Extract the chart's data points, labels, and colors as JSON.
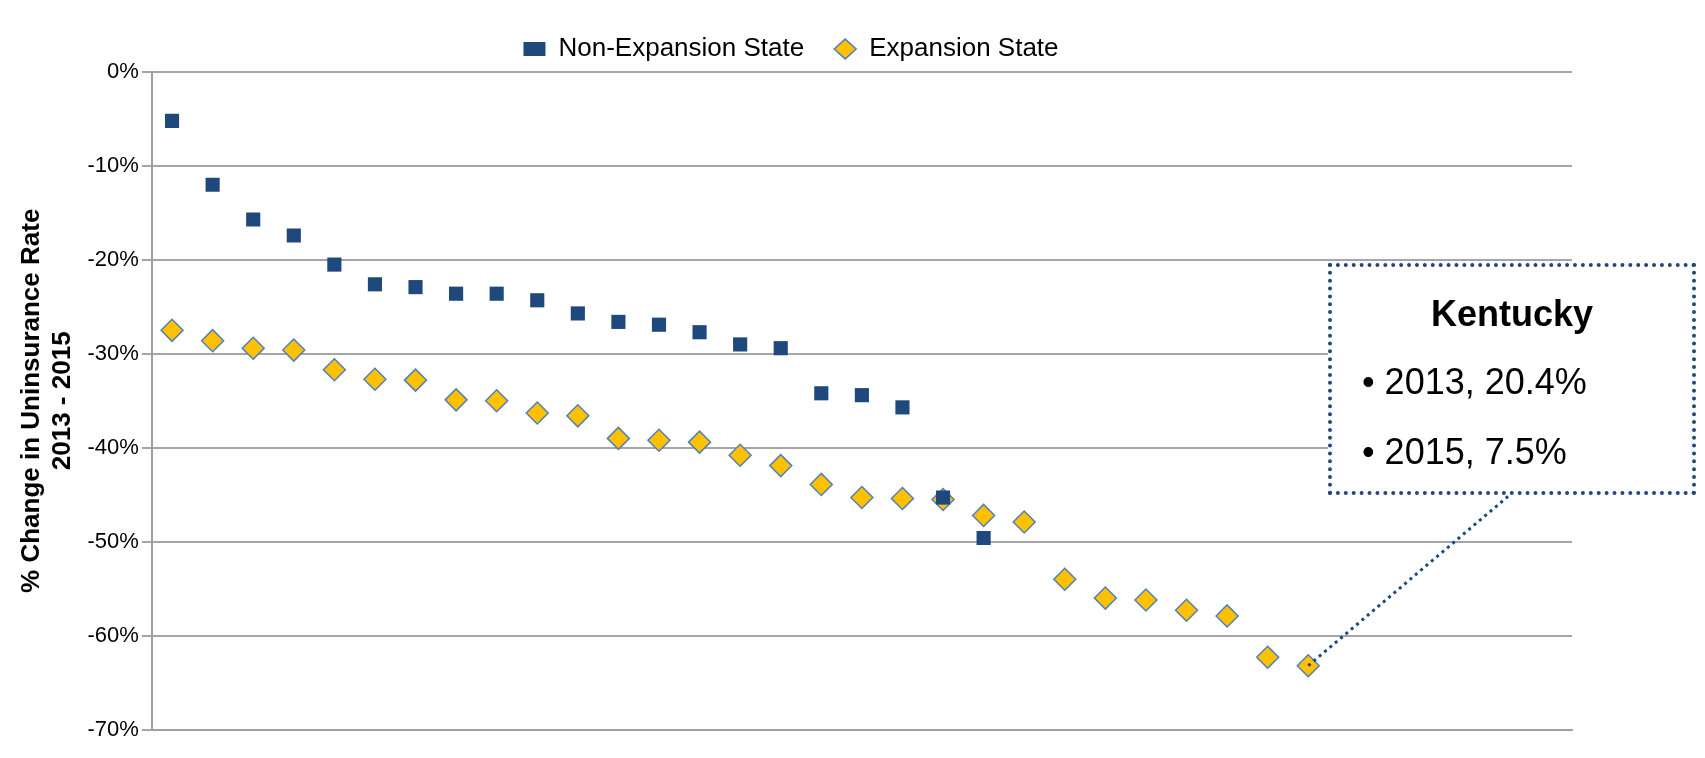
{
  "chart_data": {
    "type": "scatter",
    "ylabel": "% Change in Uninsurance Rate\n2013 - 2015",
    "categories": [
      null,
      null,
      null,
      null,
      null,
      null,
      null,
      null,
      null,
      null,
      null,
      null,
      null,
      null,
      null,
      null,
      null,
      null,
      null,
      null,
      null,
      null,
      null,
      null,
      null,
      null,
      null,
      null,
      null,
      null,
      null,
      null,
      null,
      null,
      null
    ],
    "series": [
      {
        "name": "Expansion State",
        "color": "#ffc000",
        "marker": "diamond",
        "values": [
          -27.5,
          -28.6,
          -29.4,
          -29.6,
          -31.7,
          -32.7,
          -32.8,
          -34.9,
          -35.0,
          -36.3,
          -36.6,
          -39.0,
          -39.2,
          -39.4,
          -40.8,
          -41.9,
          -43.9,
          -45.3,
          -45.4,
          -45.5,
          -47.2,
          -47.9,
          -54.0,
          -56.0,
          -56.2,
          -57.3,
          -57.9,
          -62.3,
          -63.2,
          null,
          null,
          null,
          null,
          null,
          null
        ]
      },
      {
        "name": "Non-Expansion State",
        "color": "#1f497d",
        "marker": "square",
        "values": [
          -5.2,
          -12.0,
          -15.7,
          -17.4,
          -20.5,
          -22.6,
          -22.9,
          -23.6,
          -23.6,
          -24.3,
          -25.7,
          -26.6,
          -26.9,
          -27.7,
          -29.0,
          -29.4,
          -34.2,
          -34.4,
          -35.7,
          -45.3,
          -49.6,
          null,
          null,
          null,
          null,
          null,
          null,
          null,
          null,
          null,
          null,
          null,
          null,
          null,
          null
        ]
      }
    ],
    "ylim": [
      -70,
      0
    ],
    "yticks": [
      {
        "value": 0,
        "label": "0%"
      },
      {
        "value": -10,
        "label": "-10%"
      },
      {
        "value": -20,
        "label": "-20%"
      },
      {
        "value": -30,
        "label": "-30%"
      },
      {
        "value": -40,
        "label": "-40%"
      },
      {
        "value": -50,
        "label": "-50%"
      },
      {
        "value": -60,
        "label": "-60%"
      },
      {
        "value": -70,
        "label": "-70%"
      }
    ],
    "grid": "y",
    "legend": "top",
    "annotations": [
      "Kentucky\n• 2013, 20.4%\n• 2015, 7.5%"
    ]
  }
}
